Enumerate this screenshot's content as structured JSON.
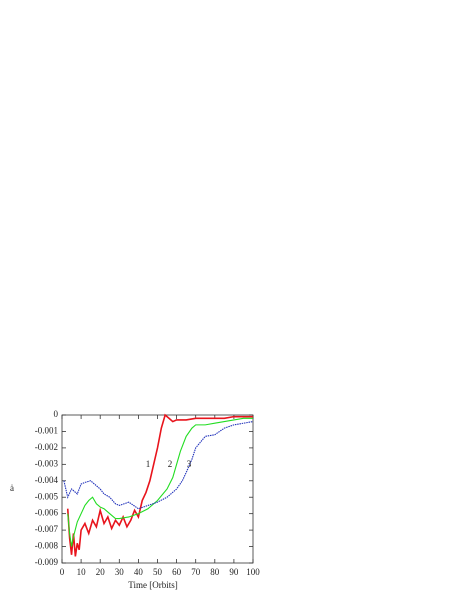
{
  "chart_data": {
    "type": "line",
    "xlabel": "Time [Orbits]",
    "ylabel": "ȧ",
    "xlim": [
      0,
      100
    ],
    "xticks": [
      0,
      10,
      20,
      30,
      40,
      50,
      60,
      70,
      80,
      90,
      100
    ],
    "ylim": [
      -0.009,
      0
    ],
    "yticks": [
      0,
      -0.001,
      -0.002,
      -0.003,
      -0.004,
      -0.005,
      -0.006,
      -0.007,
      -0.008,
      -0.009
    ],
    "series": [
      {
        "name": "1",
        "color": "#e8141c",
        "x": [
          3,
          4,
          5,
          6,
          7,
          8,
          9,
          10,
          12,
          14,
          16,
          18,
          20,
          22,
          24,
          26,
          28,
          30,
          32,
          34,
          36,
          38,
          40,
          42,
          44,
          46,
          48,
          50,
          52,
          54,
          56,
          58,
          60,
          65,
          70,
          75,
          80,
          85,
          90,
          95,
          100
        ],
        "values": [
          -0.0057,
          -0.0075,
          -0.0085,
          -0.0072,
          -0.0086,
          -0.0078,
          -0.0082,
          -0.007,
          -0.0066,
          -0.0072,
          -0.0064,
          -0.0068,
          -0.0058,
          -0.0066,
          -0.0062,
          -0.0069,
          -0.0064,
          -0.0067,
          -0.0062,
          -0.0068,
          -0.0064,
          -0.0058,
          -0.0062,
          -0.0052,
          -0.0047,
          -0.004,
          -0.003,
          -0.002,
          -0.0008,
          0,
          -0.0002,
          -0.0004,
          -0.0003,
          -0.0003,
          -0.0002,
          -0.0002,
          -0.0002,
          -0.0002,
          -0.0001,
          -0.0001,
          -0.0001
        ]
      },
      {
        "name": "2",
        "color": "#22dd22",
        "x": [
          3,
          4,
          5,
          6,
          8,
          10,
          12,
          14,
          16,
          18,
          20,
          22,
          25,
          28,
          30,
          35,
          40,
          45,
          50,
          55,
          58,
          60,
          62,
          65,
          68,
          70,
          75,
          80,
          85,
          90,
          95,
          100
        ],
        "values": [
          -0.006,
          -0.0072,
          -0.008,
          -0.0074,
          -0.0065,
          -0.006,
          -0.0055,
          -0.0052,
          -0.005,
          -0.0054,
          -0.0056,
          -0.0057,
          -0.006,
          -0.0063,
          -0.0063,
          -0.0062,
          -0.006,
          -0.0057,
          -0.0052,
          -0.0045,
          -0.0038,
          -0.003,
          -0.0022,
          -0.0013,
          -0.0008,
          -0.0006,
          -0.0006,
          -0.0005,
          -0.0004,
          -0.0003,
          -0.0002,
          -0.0002
        ]
      },
      {
        "name": "3",
        "color": "#2233bb",
        "x": [
          1,
          3,
          5,
          8,
          10,
          12,
          15,
          18,
          20,
          22,
          25,
          28,
          30,
          35,
          40,
          45,
          50,
          55,
          60,
          63,
          65,
          68,
          70,
          75,
          80,
          85,
          90,
          95,
          100
        ],
        "values": [
          -0.004,
          -0.005,
          -0.0045,
          -0.0048,
          -0.0042,
          -0.0041,
          -0.004,
          -0.0043,
          -0.0045,
          -0.0048,
          -0.005,
          -0.0054,
          -0.0055,
          -0.0053,
          -0.0057,
          -0.0055,
          -0.0053,
          -0.005,
          -0.0045,
          -0.004,
          -0.0035,
          -0.0027,
          -0.002,
          -0.0013,
          -0.0012,
          -0.0008,
          -0.0006,
          -0.0005,
          -0.0004
        ]
      }
    ]
  }
}
